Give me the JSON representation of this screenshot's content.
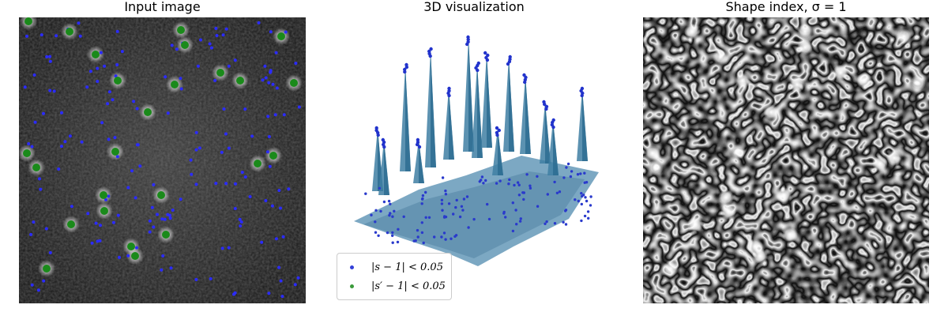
{
  "panels": {
    "input": {
      "title": "Input image"
    },
    "viz3d": {
      "title": "3D visualization"
    },
    "shape": {
      "title": "Shape index, σ = 1"
    }
  },
  "legend": {
    "entries": [
      {
        "label": "|s − 1| < 0.05",
        "color": "#3340d8"
      },
      {
        "label": "|s′ − 1| < 0.05",
        "color": "#3a9a3a"
      }
    ]
  },
  "colors": {
    "blue_marker": "#2b2bff",
    "green_marker": "#1a8a1a",
    "surface": "#3f7fa3"
  }
}
